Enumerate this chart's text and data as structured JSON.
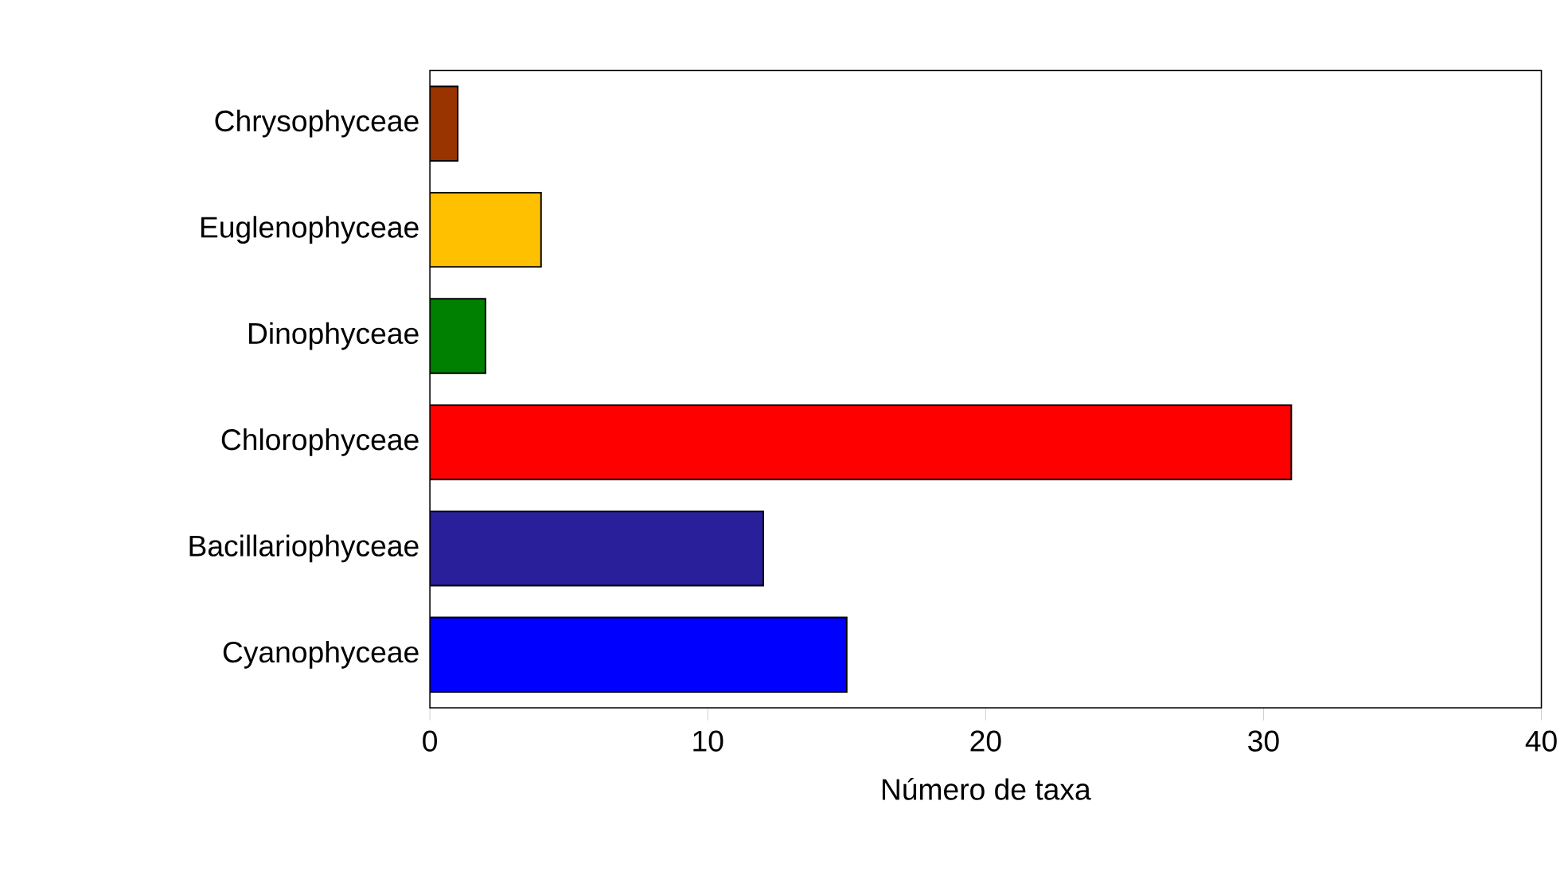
{
  "chart_data": {
    "type": "bar",
    "orientation": "horizontal",
    "xlabel": "Número de taxa",
    "categories": [
      "Chrysophyceae",
      "Euglenophyceae",
      "Dinophyceae",
      "Chlorophyceae",
      "Bacillariophyceae",
      "Cyanophyceae"
    ],
    "values": [
      1,
      4,
      2,
      31,
      12,
      15
    ],
    "colors": [
      "#993300",
      "#ffc000",
      "#008000",
      "#ff0000",
      "#2a1f9a",
      "#0000ff"
    ],
    "xlim": [
      0,
      40
    ],
    "xticks": [
      0,
      10,
      20,
      30,
      40
    ]
  }
}
